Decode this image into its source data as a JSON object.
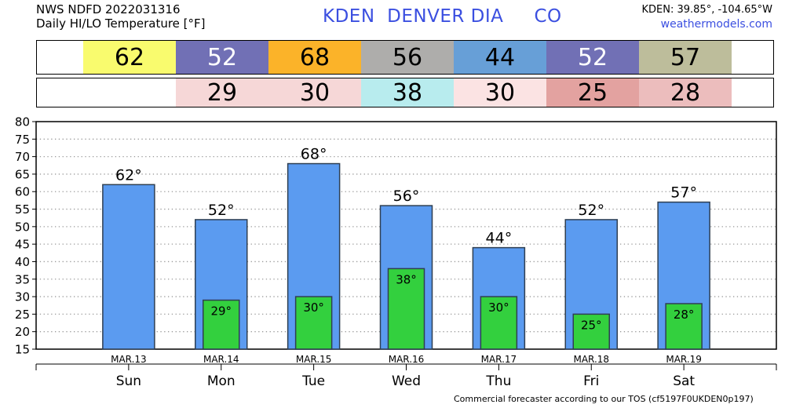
{
  "header": {
    "line1": "NWS NDFD 2022031316",
    "line2": "Daily HI/LO Temperature [°F]",
    "station": "KDEN  DENVER DIA     CO",
    "coords": "KDEN: 39.85°, -104.65°W",
    "site": "weathermodels.com"
  },
  "hi_strip": [
    {
      "value": "62",
      "color": "#f9fb6e"
    },
    {
      "value": "52",
      "color": "#7170b5"
    },
    {
      "value": "68",
      "color": "#fbb329"
    },
    {
      "value": "56",
      "color": "#aeadab"
    },
    {
      "value": "44",
      "color": "#679fd7"
    },
    {
      "value": "52",
      "color": "#7170b5"
    },
    {
      "value": "57",
      "color": "#bdbd9b"
    }
  ],
  "lo_strip": [
    {
      "value": "",
      "color": "#ffffff"
    },
    {
      "value": "29",
      "color": "#f6d7d7"
    },
    {
      "value": "30",
      "color": "#f6d7d7"
    },
    {
      "value": "38",
      "color": "#b8ecee"
    },
    {
      "value": "30",
      "color": "#fbe3e3"
    },
    {
      "value": "25",
      "color": "#e3a2a0"
    },
    {
      "value": "28",
      "color": "#ecbdbd"
    }
  ],
  "chart_data": {
    "type": "bar",
    "categories": [
      "Sun",
      "Mon",
      "Tue",
      "Wed",
      "Thu",
      "Fri",
      "Sat"
    ],
    "dates": [
      "MAR.13",
      "MAR.14",
      "MAR.15",
      "MAR.16",
      "MAR.17",
      "MAR.18",
      "MAR.19"
    ],
    "series": [
      {
        "values": [
          62,
          52,
          68,
          56,
          44,
          52,
          57
        ],
        "color": "#5b9bf0"
      },
      {
        "values": [
          null,
          29,
          30,
          38,
          30,
          25,
          28
        ],
        "color": "#33d03e"
      }
    ],
    "ylim": [
      15,
      80
    ],
    "yticks": [
      15,
      20,
      25,
      30,
      35,
      40,
      45,
      50,
      55,
      60,
      65,
      70,
      75,
      80
    ],
    "grid": true,
    "degree_symbol": "°"
  },
  "footer": "Commercial forecaster according to our TOS (cf5197F0UKDEN0p197)"
}
